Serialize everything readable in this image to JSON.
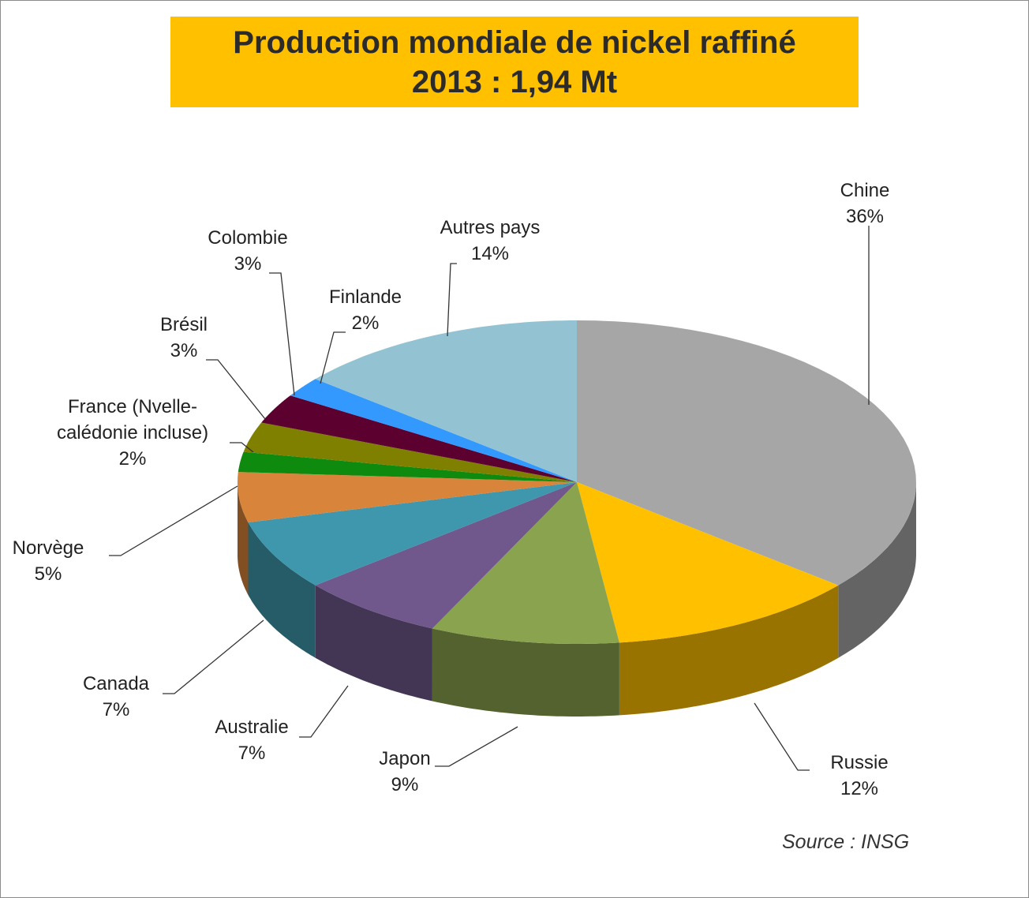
{
  "chart_data": {
    "type": "pie",
    "title": "Production mondiale de nickel raffiné",
    "subtitle": "2013 : 1,94 Mt",
    "categories": [
      "Chine",
      "Russie",
      "Japon",
      "Australie",
      "Canada",
      "Norvège",
      "France (Nvelle-calédonie incluse)",
      "Brésil",
      "Colombie",
      "Finlande",
      "Autres pays"
    ],
    "values": [
      36,
      12,
      9,
      7,
      7,
      5,
      2,
      3,
      3,
      2,
      14
    ],
    "value_labels": [
      "36%",
      "12%",
      "9%",
      "7%",
      "7%",
      "5%",
      "2%",
      "3%",
      "3%",
      "2%",
      "14%"
    ],
    "colors": [
      "#a6a6a6",
      "#ffc000",
      "#8aa34e",
      "#70588c",
      "#3f97ae",
      "#d9843b",
      "#0e8a0e",
      "#7f7f00",
      "#5c0030",
      "#3399ff",
      "#93c3d3"
    ],
    "source": "Source : INSG"
  }
}
